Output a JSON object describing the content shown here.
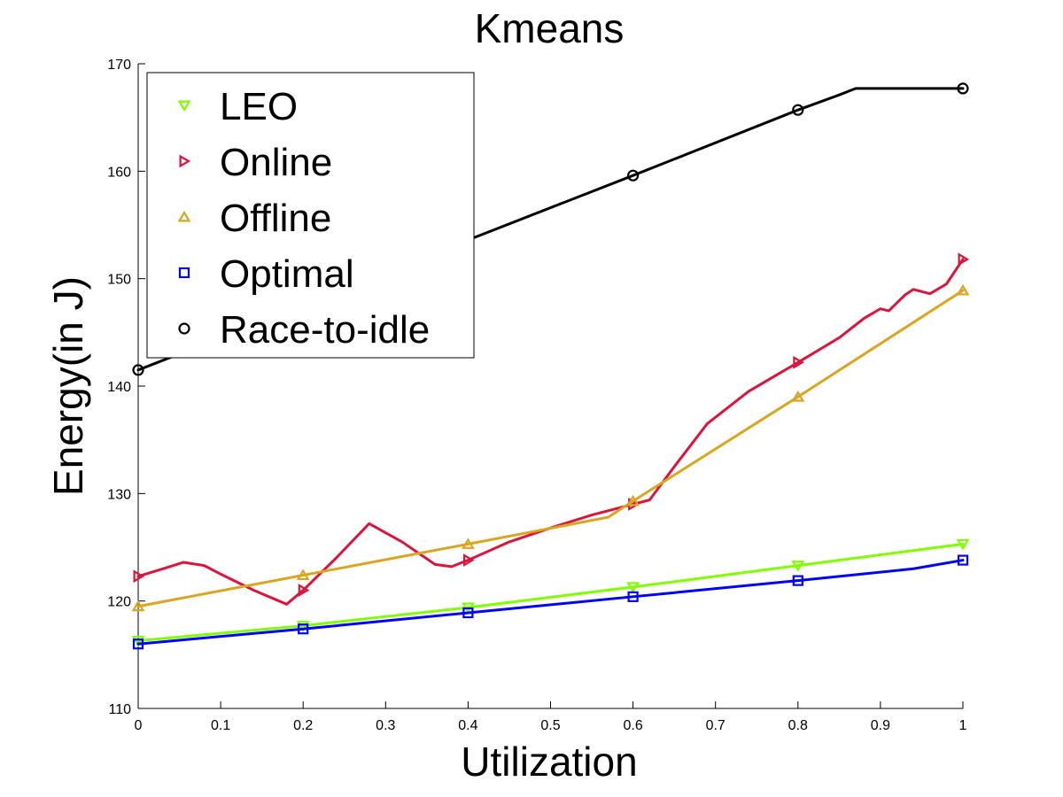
{
  "chart_data": {
    "type": "line",
    "title": "Kmeans",
    "xlabel": "Utilization",
    "ylabel": "Energy(in J)",
    "xlim": [
      0,
      1
    ],
    "ylim": [
      110,
      170
    ],
    "xticks": [
      0,
      0.1,
      0.2,
      0.3,
      0.4,
      0.5,
      0.6,
      0.7,
      0.8,
      0.9,
      1
    ],
    "xtick_labels": [
      "0",
      "0.1",
      "0.2",
      "0.3",
      "0.4",
      "0.5",
      "0.6",
      "0.7",
      "0.8",
      "0.9",
      "1"
    ],
    "yticks": [
      110,
      120,
      130,
      140,
      150,
      160,
      170
    ],
    "ytick_labels": [
      "110",
      "120",
      "130",
      "140",
      "150",
      "160",
      "170"
    ],
    "grid": false,
    "legend_position": "top-left",
    "series": [
      {
        "name": "LEO",
        "color": "#7fff00",
        "marker": "triangle-down",
        "line": [
          [
            0,
            116.3
          ],
          [
            0.2,
            117.7
          ],
          [
            0.4,
            119.4
          ],
          [
            0.6,
            121.3
          ],
          [
            0.8,
            123.3
          ],
          [
            1,
            125.3
          ]
        ],
        "markers": [
          [
            0,
            116.3
          ],
          [
            0.2,
            117.7
          ],
          [
            0.4,
            119.4
          ],
          [
            0.6,
            121.3
          ],
          [
            0.8,
            123.3
          ],
          [
            1,
            125.3
          ]
        ]
      },
      {
        "name": "Online",
        "color": "#dc143c",
        "marker": "triangle-right",
        "line": [
          [
            0,
            122.3
          ],
          [
            0.03,
            123
          ],
          [
            0.055,
            123.6
          ],
          [
            0.08,
            123.3
          ],
          [
            0.1,
            122.5
          ],
          [
            0.14,
            121
          ],
          [
            0.18,
            119.7
          ],
          [
            0.2,
            121
          ],
          [
            0.24,
            124
          ],
          [
            0.28,
            127.2
          ],
          [
            0.32,
            125.5
          ],
          [
            0.36,
            123.4
          ],
          [
            0.38,
            123.2
          ],
          [
            0.4,
            123.8
          ],
          [
            0.45,
            125.5
          ],
          [
            0.5,
            126.8
          ],
          [
            0.55,
            128
          ],
          [
            0.6,
            129
          ],
          [
            0.62,
            129.4
          ],
          [
            0.65,
            132.5
          ],
          [
            0.69,
            136.5
          ],
          [
            0.74,
            139.5
          ],
          [
            0.8,
            142.2
          ],
          [
            0.85,
            144.5
          ],
          [
            0.88,
            146.3
          ],
          [
            0.9,
            147.2
          ],
          [
            0.91,
            147
          ],
          [
            0.93,
            148.5
          ],
          [
            0.94,
            149
          ],
          [
            0.96,
            148.6
          ],
          [
            0.98,
            149.5
          ],
          [
            1,
            151.8
          ]
        ],
        "markers": [
          [
            0,
            122.3
          ],
          [
            0.2,
            121
          ],
          [
            0.4,
            123.8
          ],
          [
            0.6,
            129
          ],
          [
            0.8,
            142.2
          ],
          [
            1,
            151.8
          ]
        ]
      },
      {
        "name": "Offline",
        "color": "#daa520",
        "marker": "triangle-up",
        "line": [
          [
            0,
            119.5
          ],
          [
            0.2,
            122.4
          ],
          [
            0.4,
            125.3
          ],
          [
            0.57,
            127.8
          ],
          [
            0.6,
            129.3
          ],
          [
            0.8,
            139
          ],
          [
            1,
            148.9
          ]
        ],
        "markers": [
          [
            0,
            119.5
          ],
          [
            0.2,
            122.4
          ],
          [
            0.4,
            125.3
          ],
          [
            0.6,
            129.3
          ],
          [
            0.8,
            139
          ],
          [
            1,
            148.9
          ]
        ]
      },
      {
        "name": "Optimal",
        "color": "#0000ff",
        "marker": "square",
        "line": [
          [
            0,
            116
          ],
          [
            0.2,
            117.4
          ],
          [
            0.4,
            118.9
          ],
          [
            0.6,
            120.4
          ],
          [
            0.8,
            121.9
          ],
          [
            0.94,
            123
          ],
          [
            1,
            123.8
          ]
        ],
        "markers": [
          [
            0,
            116
          ],
          [
            0.2,
            117.4
          ],
          [
            0.4,
            118.9
          ],
          [
            0.6,
            120.4
          ],
          [
            0.8,
            121.9
          ],
          [
            1,
            123.8
          ]
        ]
      },
      {
        "name": "Race-to-idle",
        "color": "#000000",
        "marker": "circle",
        "line": [
          [
            0,
            141.5
          ],
          [
            0.2,
            147.5
          ],
          [
            0.4,
            153.6
          ],
          [
            0.6,
            159.6
          ],
          [
            0.8,
            165.7
          ],
          [
            0.85,
            167.1
          ],
          [
            0.87,
            167.7
          ],
          [
            1,
            167.7
          ]
        ],
        "markers": [
          [
            0,
            141.5
          ],
          [
            0.6,
            159.6
          ],
          [
            0.8,
            165.7
          ],
          [
            1,
            167.7
          ]
        ]
      }
    ]
  }
}
